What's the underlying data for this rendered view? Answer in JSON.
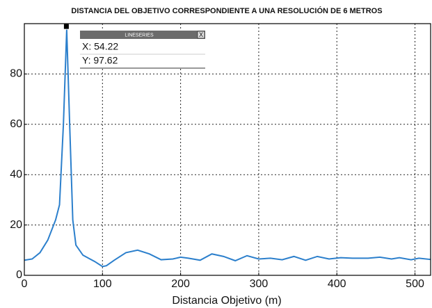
{
  "chart_data": {
    "type": "line",
    "title": "DISTANCIA DEL OBJETIVO CORRESPONDIENTE A UNA RESOLUCIÓN DE 6 METROS",
    "x_label": "Distancia Objetivo (m)",
    "x": [
      0,
      10,
      20,
      30,
      40,
      45,
      50,
      54.22,
      58,
      62,
      66,
      75,
      90,
      100,
      105,
      115,
      130,
      145,
      160,
      175,
      190,
      200,
      210,
      225,
      240,
      255,
      270,
      285,
      300,
      315,
      330,
      345,
      360,
      375,
      390,
      405,
      420,
      440,
      455,
      470,
      480,
      495,
      505,
      520
    ],
    "series": [
      {
        "name": "LINESERIES",
        "color": "#2b7fcc",
        "values": [
          6,
          6.5,
          9,
          14,
          22,
          28,
          60,
          97.62,
          60,
          22,
          12,
          8,
          5.5,
          3.5,
          3.8,
          6,
          9,
          10,
          8.5,
          6.2,
          6.5,
          7.2,
          6.8,
          6,
          8.5,
          7.5,
          5.8,
          7.8,
          6.5,
          6.8,
          6.2,
          7.5,
          6,
          7.5,
          6.5,
          7,
          6.8,
          6.8,
          7.2,
          6.5,
          7,
          6.2,
          6.8,
          6.3
        ]
      }
    ],
    "xlim": [
      0,
      520
    ],
    "ylim": [
      0,
      100
    ],
    "xticks": [
      0,
      100,
      200,
      300,
      400,
      500
    ],
    "yticks": [
      0,
      20,
      40,
      60,
      80
    ],
    "grid": true,
    "tooltip": {
      "x_text": "X: 54.22",
      "y_text": "Y: 97.62",
      "close": "X"
    }
  }
}
